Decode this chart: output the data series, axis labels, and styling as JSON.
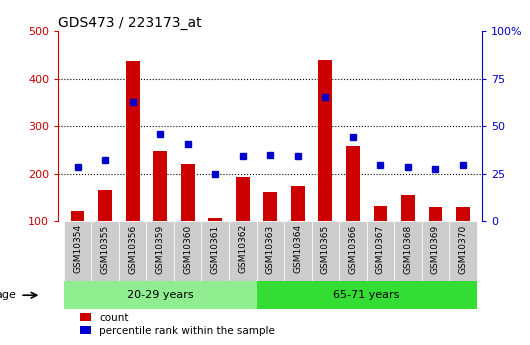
{
  "title": "GDS473 / 223173_at",
  "samples": [
    "GSM10354",
    "GSM10355",
    "GSM10356",
    "GSM10359",
    "GSM10360",
    "GSM10361",
    "GSM10362",
    "GSM10363",
    "GSM10364",
    "GSM10365",
    "GSM10366",
    "GSM10367",
    "GSM10368",
    "GSM10369",
    "GSM10370"
  ],
  "counts": [
    122,
    165,
    437,
    248,
    220,
    108,
    193,
    162,
    175,
    440,
    258,
    132,
    155,
    130,
    130
  ],
  "percentile_left_vals": [
    215,
    228,
    350,
    283,
    263,
    200,
    237,
    240,
    238,
    362,
    277,
    218,
    214,
    210,
    218
  ],
  "group1_label": "20-29 years",
  "group2_label": "65-71 years",
  "group1_count": 7,
  "group2_count": 8,
  "ylim_left": [
    100,
    500
  ],
  "yticks_left": [
    100,
    200,
    300,
    400,
    500
  ],
  "yticks_right": [
    0,
    25,
    50,
    75,
    100
  ],
  "bar_color": "#cc0000",
  "dot_color": "#0000cc",
  "group1_color": "#90ee90",
  "group2_color": "#33dd33",
  "axis_color_left": "#cc0000",
  "axis_color_right": "#0000cc",
  "bar_width": 0.5,
  "legend_count_label": "count",
  "legend_pct_label": "percentile rank within the sample",
  "age_label": "age",
  "baseline": 100,
  "bg_color": "#ffffff",
  "tick_bg_color": "#cccccc",
  "grid_dotted_vals": [
    200,
    300,
    400
  ]
}
